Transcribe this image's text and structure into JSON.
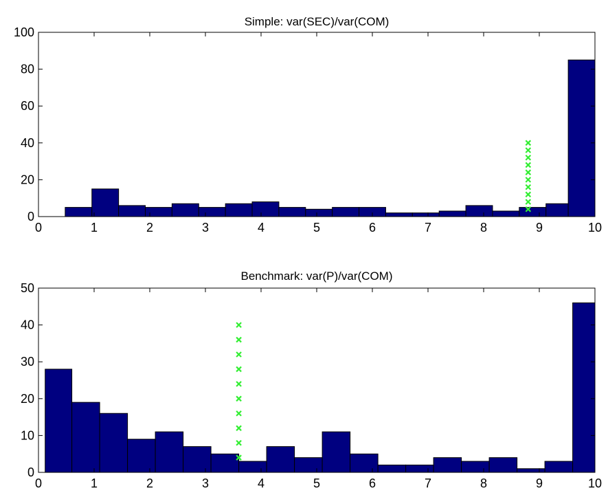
{
  "chart_data": [
    {
      "type": "bar",
      "title": "Simple: var(SEC)/var(COM)",
      "xlabel": "",
      "ylabel": "",
      "xlim": [
        0,
        10
      ],
      "ylim": [
        0,
        100
      ],
      "xticks": [
        0,
        1,
        2,
        3,
        4,
        5,
        6,
        7,
        8,
        9,
        10
      ],
      "yticks": [
        0,
        20,
        40,
        60,
        80,
        100
      ],
      "bins": [
        {
          "x0": 0.48,
          "x1": 0.96,
          "value": 5
        },
        {
          "x0": 0.96,
          "x1": 1.44,
          "value": 15
        },
        {
          "x0": 1.44,
          "x1": 1.92,
          "value": 6
        },
        {
          "x0": 1.92,
          "x1": 2.4,
          "value": 5
        },
        {
          "x0": 2.4,
          "x1": 2.88,
          "value": 7
        },
        {
          "x0": 2.88,
          "x1": 3.36,
          "value": 5
        },
        {
          "x0": 3.36,
          "x1": 3.84,
          "value": 7
        },
        {
          "x0": 3.84,
          "x1": 4.32,
          "value": 8
        },
        {
          "x0": 4.32,
          "x1": 4.8,
          "value": 5
        },
        {
          "x0": 4.8,
          "x1": 5.28,
          "value": 4
        },
        {
          "x0": 5.28,
          "x1": 5.76,
          "value": 5
        },
        {
          "x0": 5.76,
          "x1": 6.24,
          "value": 5
        },
        {
          "x0": 6.24,
          "x1": 6.72,
          "value": 2
        },
        {
          "x0": 6.72,
          "x1": 7.2,
          "value": 2
        },
        {
          "x0": 7.2,
          "x1": 7.68,
          "value": 3
        },
        {
          "x0": 7.68,
          "x1": 8.16,
          "value": 6
        },
        {
          "x0": 8.16,
          "x1": 8.64,
          "value": 3
        },
        {
          "x0": 8.64,
          "x1": 9.12,
          "value": 5
        },
        {
          "x0": 9.12,
          "x1": 9.52,
          "value": 7
        },
        {
          "x0": 9.52,
          "x1": 10.0,
          "value": 85
        }
      ],
      "marker_line": {
        "x": 8.8,
        "y_values": [
          4,
          8,
          12,
          16,
          20,
          24,
          28,
          32,
          36,
          40
        ]
      },
      "bar_color": "#000080",
      "marker_color": "#33ee33"
    },
    {
      "type": "bar",
      "title": "Benchmark: var(P)/var(COM)",
      "xlabel": "",
      "ylabel": "",
      "xlim": [
        0,
        10
      ],
      "ylim": [
        0,
        50
      ],
      "xticks": [
        0,
        1,
        2,
        3,
        4,
        5,
        6,
        7,
        8,
        9,
        10
      ],
      "yticks": [
        0,
        10,
        20,
        30,
        40,
        50
      ],
      "bins": [
        {
          "x0": 0.12,
          "x1": 0.6,
          "value": 28
        },
        {
          "x0": 0.6,
          "x1": 1.1,
          "value": 19
        },
        {
          "x0": 1.1,
          "x1": 1.6,
          "value": 16
        },
        {
          "x0": 1.6,
          "x1": 2.1,
          "value": 9
        },
        {
          "x0": 2.1,
          "x1": 2.6,
          "value": 11
        },
        {
          "x0": 2.6,
          "x1": 3.1,
          "value": 7
        },
        {
          "x0": 3.1,
          "x1": 3.6,
          "value": 5
        },
        {
          "x0": 3.6,
          "x1": 4.1,
          "value": 3
        },
        {
          "x0": 4.1,
          "x1": 4.6,
          "value": 7
        },
        {
          "x0": 4.6,
          "x1": 5.1,
          "value": 4
        },
        {
          "x0": 5.1,
          "x1": 5.6,
          "value": 11
        },
        {
          "x0": 5.6,
          "x1": 6.1,
          "value": 5
        },
        {
          "x0": 6.1,
          "x1": 6.6,
          "value": 2
        },
        {
          "x0": 6.6,
          "x1": 7.1,
          "value": 2
        },
        {
          "x0": 7.1,
          "x1": 7.6,
          "value": 4
        },
        {
          "x0": 7.6,
          "x1": 8.1,
          "value": 3
        },
        {
          "x0": 8.1,
          "x1": 8.6,
          "value": 4
        },
        {
          "x0": 8.6,
          "x1": 9.1,
          "value": 1
        },
        {
          "x0": 9.1,
          "x1": 9.6,
          "value": 3
        },
        {
          "x0": 9.6,
          "x1": 10.0,
          "value": 46
        }
      ],
      "marker_line": {
        "x": 3.6,
        "y_values": [
          4,
          8,
          12,
          16,
          20,
          24,
          28,
          32,
          36,
          40
        ]
      },
      "bar_color": "#000080",
      "marker_color": "#33ee33"
    }
  ]
}
